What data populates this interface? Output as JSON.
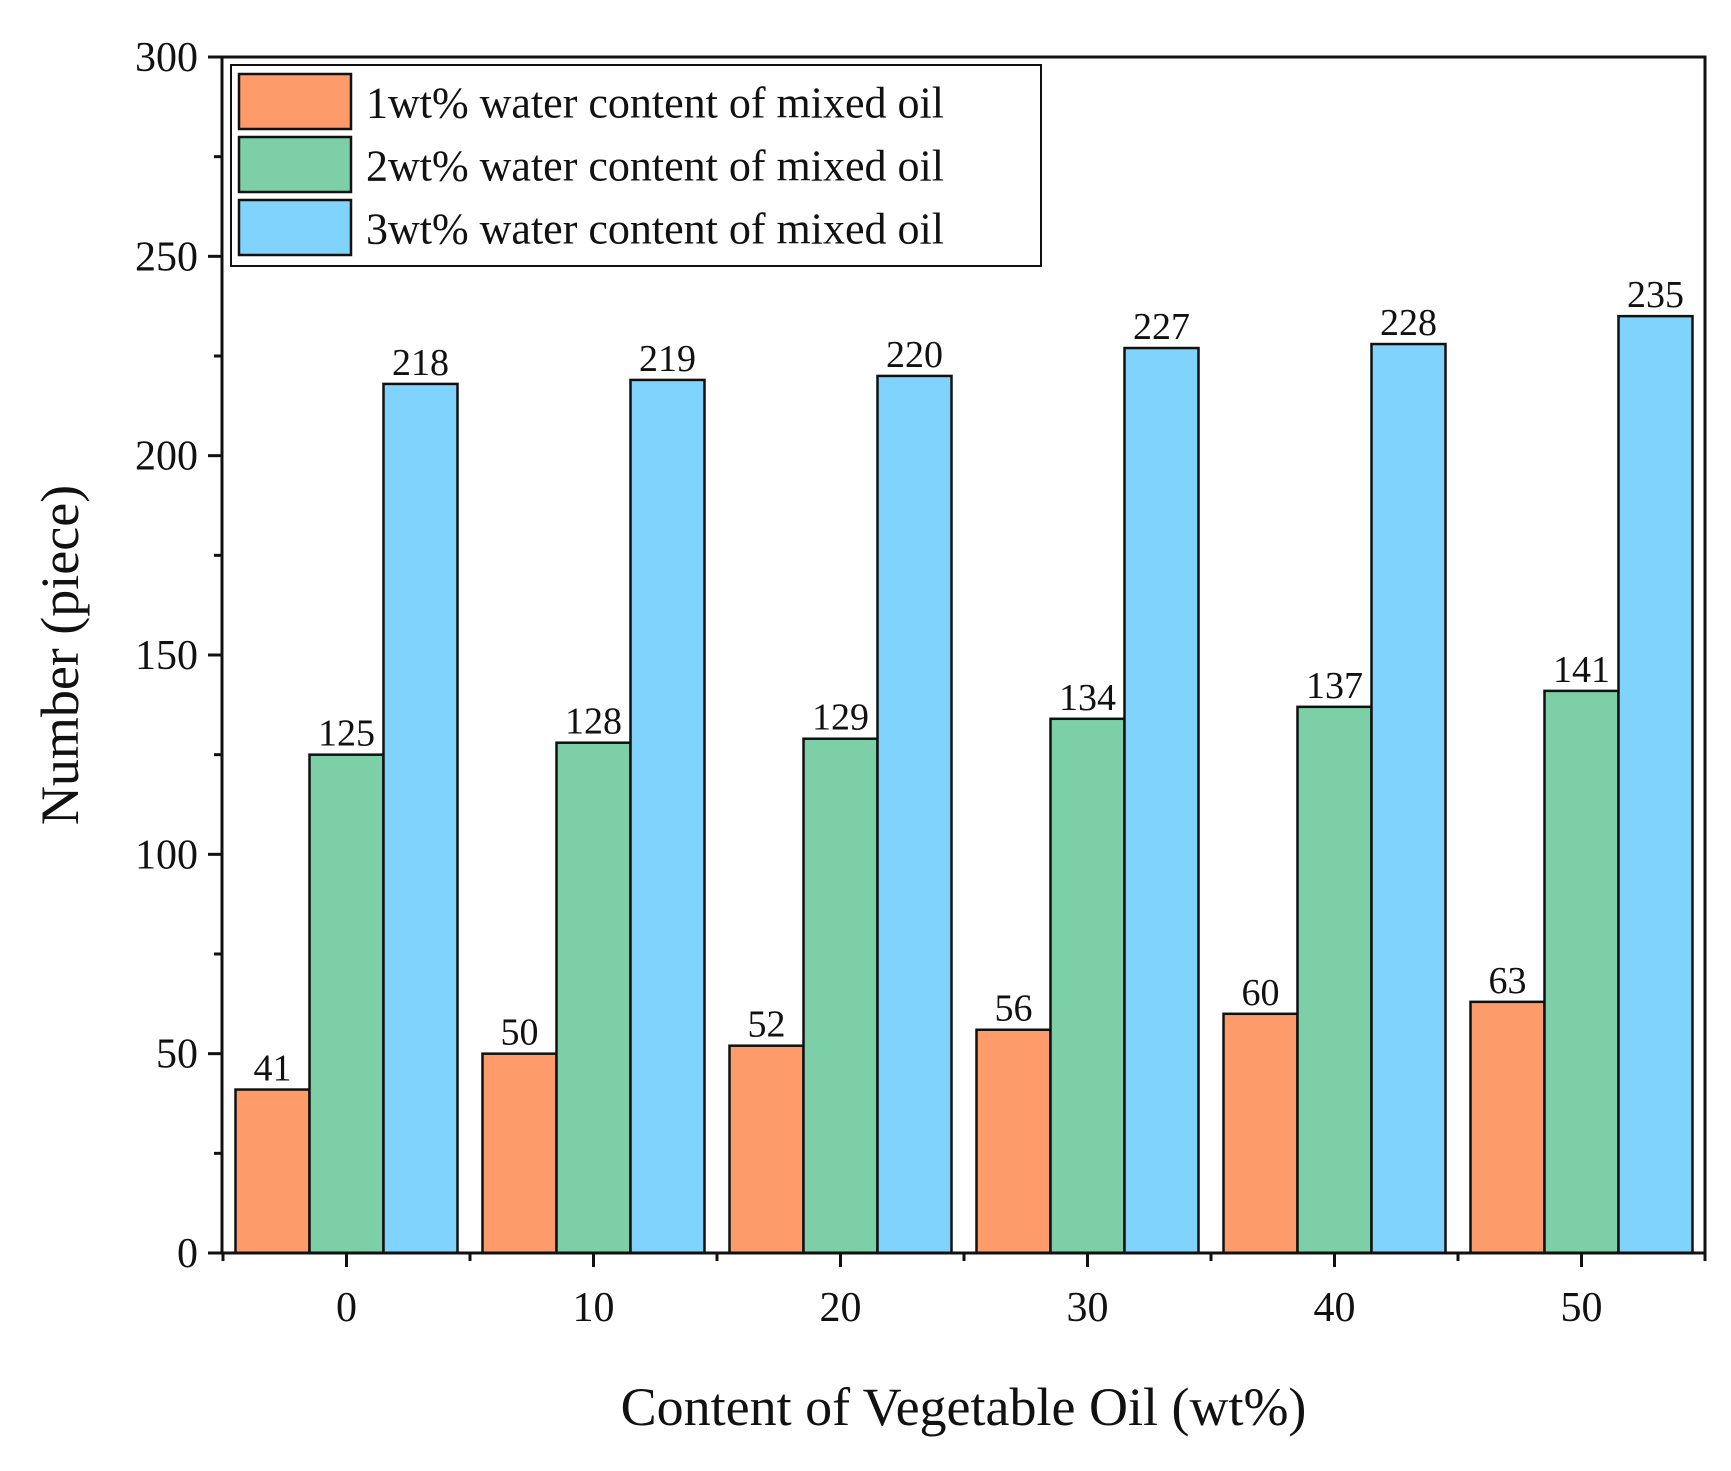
{
  "chart_data": {
    "type": "bar",
    "title": "",
    "xlabel": "Content of Vegetable Oil (wt%)",
    "ylabel": "Number (piece)",
    "categories": [
      "0",
      "10",
      "20",
      "30",
      "40",
      "50"
    ],
    "ylim": [
      0,
      300
    ],
    "yticks": [
      "0",
      "50",
      "100",
      "150",
      "200",
      "250",
      "300"
    ],
    "series": [
      {
        "name": "1wt% water content of mixed oil",
        "color": "#FE9B6B",
        "values": [
          41,
          50,
          52,
          56,
          60,
          63
        ],
        "labels": [
          "41",
          "50",
          "52",
          "56",
          "60",
          "63"
        ]
      },
      {
        "name": "2wt% water content of mixed oil",
        "color": "#7CCFA6",
        "values": [
          125,
          128,
          129,
          134,
          137,
          141
        ],
        "labels": [
          "125",
          "128",
          "129",
          "134",
          "137",
          "141"
        ]
      },
      {
        "name": "3wt% water content of mixed oil",
        "color": "#80D3FD",
        "values": [
          218,
          219,
          220,
          227,
          228,
          235
        ],
        "labels": [
          "218",
          "219",
          "220",
          "227",
          "228",
          "235"
        ]
      }
    ],
    "legend_position": "top-left",
    "grid": false
  }
}
